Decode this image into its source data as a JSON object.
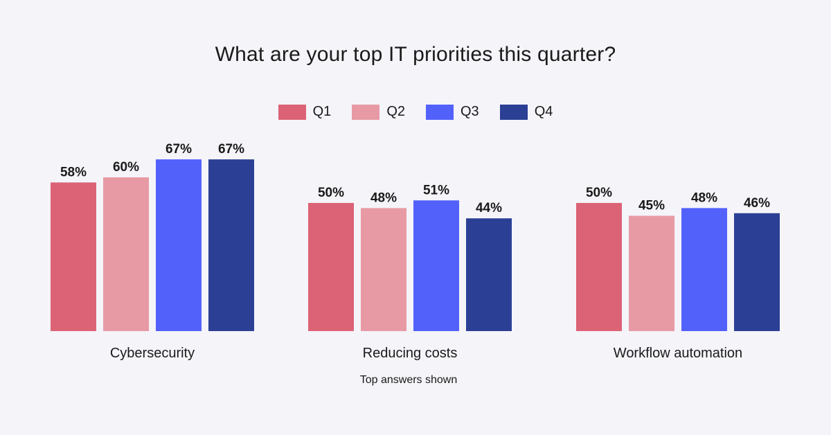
{
  "chart_data": {
    "type": "bar",
    "title": "What are your top IT priorities this quarter?",
    "categories": [
      "Cybersecurity",
      "Reducing costs",
      "Workflow automation"
    ],
    "series": [
      {
        "name": "Q1",
        "color": "#dc6376",
        "values": [
          58,
          50,
          50
        ]
      },
      {
        "name": "Q2",
        "color": "#e89aa4",
        "values": [
          60,
          48,
          45
        ]
      },
      {
        "name": "Q3",
        "color": "#5361fb",
        "values": [
          67,
          51,
          48
        ]
      },
      {
        "name": "Q4",
        "color": "#2b4095",
        "values": [
          67,
          44,
          46
        ]
      }
    ],
    "value_suffix": "%",
    "ylim": [
      0,
      100
    ],
    "grid": false,
    "legend_position": "top",
    "note": "Top answers shown"
  }
}
